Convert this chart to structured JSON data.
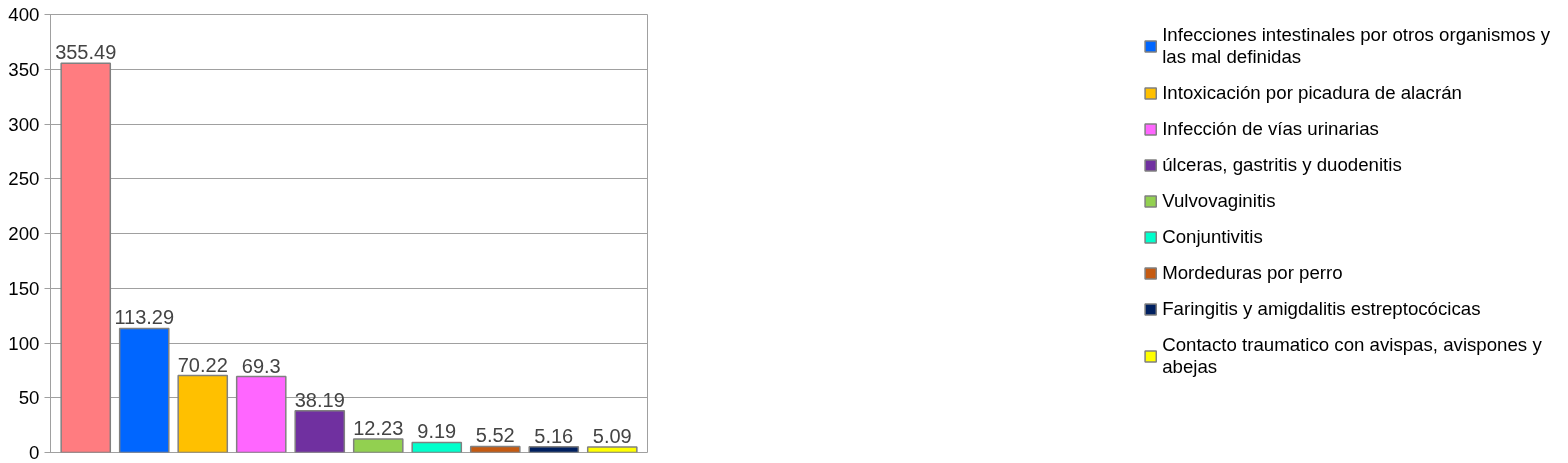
{
  "chart_data": {
    "type": "bar",
    "categories": [
      null
    ],
    "series": [
      {
        "color": "#ff7c80",
        "values": [
          355.49
        ]
      },
      {
        "name": "Infecciones intestinales por otros organismos y las mal definidas",
        "color": "#0066ff",
        "values": [
          113.29
        ]
      },
      {
        "name": "Intoxicación por picadura de alacrán",
        "color": "#ffc000",
        "values": [
          70.22
        ]
      },
      {
        "name": "Infección de vías urinarias",
        "color": "#ff66ff",
        "values": [
          69.3
        ]
      },
      {
        "name": "úlceras, gastritis y duodenitis",
        "color": "#7030a0",
        "values": [
          38.19
        ]
      },
      {
        "name": "Vulvovaginitis",
        "color": "#92d050",
        "values": [
          12.23
        ]
      },
      {
        "name": "Conjuntivitis",
        "color": "#00ffcc",
        "values": [
          9.19
        ]
      },
      {
        "name": "Mordeduras por perro",
        "color": "#c55a11",
        "values": [
          5.52
        ]
      },
      {
        "name": "Faringitis y amigdalitis estreptocócicas",
        "color": "#002060",
        "values": [
          5.16
        ]
      },
      {
        "name": "Contacto traumatico con avispas, avispones y abejas",
        "color": "#ffff00",
        "values": [
          5.09
        ]
      }
    ],
    "ylim": [
      0,
      400
    ],
    "yticks": [
      0,
      50,
      100,
      150,
      200,
      250,
      300,
      350,
      400
    ],
    "grid": "y",
    "data_labels": true,
    "legend": "right",
    "tick_labels": "y"
  }
}
